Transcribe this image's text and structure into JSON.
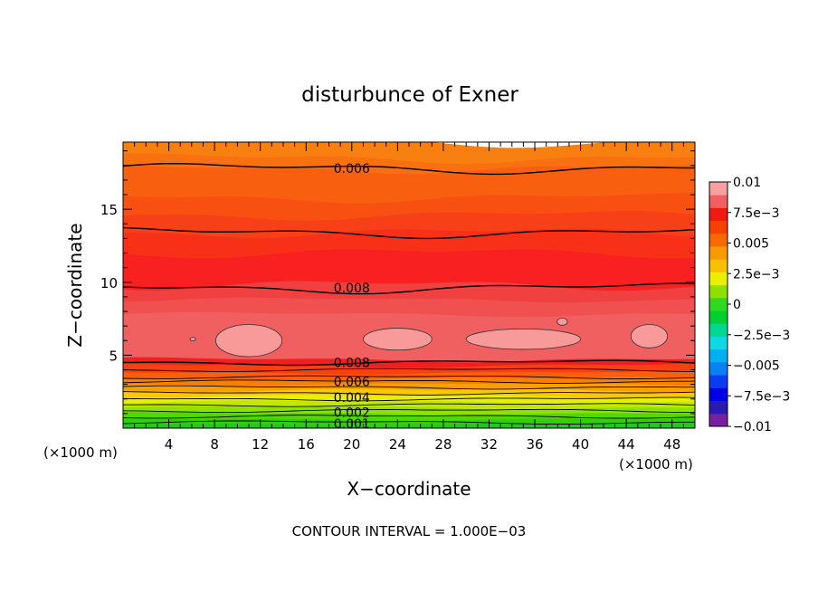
{
  "chart_data": {
    "type": "heatmap",
    "title": "disturbunce of Exner",
    "xlabel": "X−coordinate",
    "ylabel": "Z−coordinate",
    "x_unit_left": "(×1000 m)",
    "x_unit_right": "(×1000 m)",
    "footer": "CONTOUR INTERVAL = 1.000E−03",
    "xlim": [
      0,
      50
    ],
    "ylim": [
      0,
      19.6
    ],
    "x_ticks": [
      4,
      8,
      12,
      16,
      20,
      24,
      28,
      32,
      36,
      40,
      44,
      48
    ],
    "x_tick_labels": [
      "4",
      "8",
      "12",
      "16",
      "20",
      "24",
      "28",
      "32",
      "36",
      "40",
      "44",
      "48"
    ],
    "y_ticks": [
      5,
      10,
      15
    ],
    "y_tick_labels": [
      "5",
      "10",
      "15"
    ],
    "colorbar": {
      "min": -0.01,
      "max": 0.01,
      "labels": [
        {
          "value": 0.01,
          "text": "0.01"
        },
        {
          "value": 0.0075,
          "text": "7.5e−3"
        },
        {
          "value": 0.005,
          "text": "0.005"
        },
        {
          "value": 0.0025,
          "text": "2.5e−3"
        },
        {
          "value": 0,
          "text": "0"
        },
        {
          "value": -0.0025,
          "text": "−2.5e−3"
        },
        {
          "value": -0.005,
          "text": "−0.005"
        },
        {
          "value": -0.0075,
          "text": "−7.5e−3"
        },
        {
          "value": -0.01,
          "text": "−0.01"
        }
      ],
      "colors": [
        "#7a1fa0",
        "#2a1ab0",
        "#0000e6",
        "#0a3cf0",
        "#0a80f5",
        "#00b0f0",
        "#10d8e0",
        "#00d890",
        "#00d030",
        "#30d820",
        "#8ee000",
        "#e8f000",
        "#f8c000",
        "#f89a00",
        "#f86a00",
        "#f84000",
        "#f01a10",
        "#f06060",
        "#f8a0a0"
      ]
    },
    "contour_labels": [
      {
        "x": 20,
        "z": 17.8,
        "text": "0.006"
      },
      {
        "x": 20,
        "z": 9.6,
        "text": "0.008"
      },
      {
        "x": 20,
        "z": 4.5,
        "text": "0.008"
      },
      {
        "x": 20,
        "z": 3.2,
        "text": "0.006"
      },
      {
        "x": 20,
        "z": 2.1,
        "text": "0.004"
      },
      {
        "x": 20,
        "z": 1.1,
        "text": "0.002"
      },
      {
        "x": 20,
        "z": 0.3,
        "text": "0.001"
      }
    ]
  }
}
